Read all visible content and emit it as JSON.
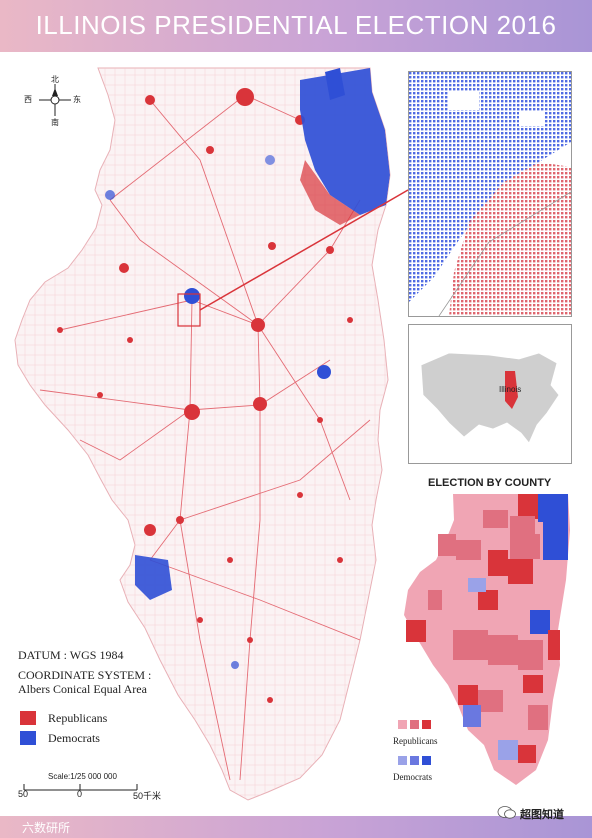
{
  "header": {
    "title": "ILLINOIS PRESIDENTIAL ELECTION 2016"
  },
  "compass": {
    "north": "北",
    "south": "南",
    "east": "东",
    "west": "西"
  },
  "info": {
    "datum": "DATUM : WGS 1984",
    "coord_label": "COORDINATE SYSTEM :",
    "coord_value": "Albers Conical Equal Area"
  },
  "legend": {
    "republicans": "Republicans",
    "democrats": "Democrats"
  },
  "scale": {
    "label": "Scale:1/25 000 000",
    "left": "50",
    "mid": "0",
    "right": "50千米"
  },
  "inset_us": {
    "label": "Illinois"
  },
  "county_map": {
    "title": "ELECTION BY COUNTY",
    "legend_rep": "Republicans",
    "legend_dem": "Democrats"
  },
  "colors": {
    "republican": "#d9343a",
    "democrat": "#2f4fd6",
    "rep_light": "#f0a5b4",
    "rep_mid": "#e07080",
    "dem_light": "#9aa2e8",
    "dem_mid": "#6a78e0"
  },
  "watermarks": {
    "left": "六数研所",
    "right": "超图知道"
  }
}
